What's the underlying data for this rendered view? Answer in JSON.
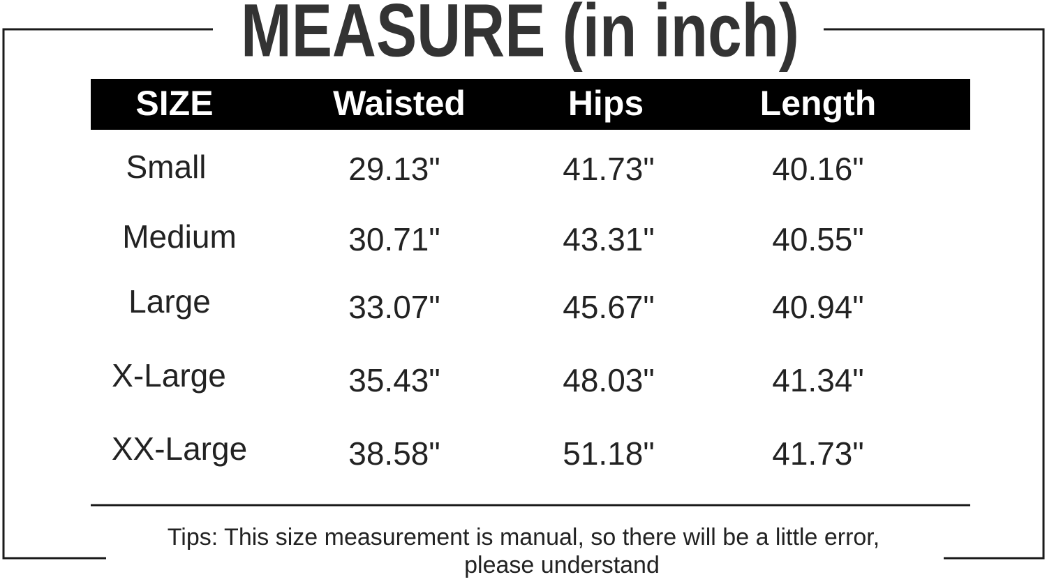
{
  "title": "MEASURE (in inch)",
  "table": {
    "header": [
      "SIZE",
      "Waisted",
      "Hips",
      "Length"
    ],
    "rows": [
      [
        "Small",
        "29.13\"",
        "41.73\"",
        "40.16\""
      ],
      [
        "Medium",
        "30.71\"",
        "43.31\"",
        "40.55\""
      ],
      [
        "Large",
        "33.07\"",
        "45.67\"",
        "40.94\""
      ],
      [
        "X-Large",
        "35.43\"",
        "48.03\"",
        "41.34\""
      ],
      [
        "XX-Large",
        "38.58\"",
        "51.18\"",
        "41.73\""
      ]
    ]
  },
  "tips": [
    "Tips:  This size measurement is manual, so there will be a little error,",
    "please understand"
  ]
}
